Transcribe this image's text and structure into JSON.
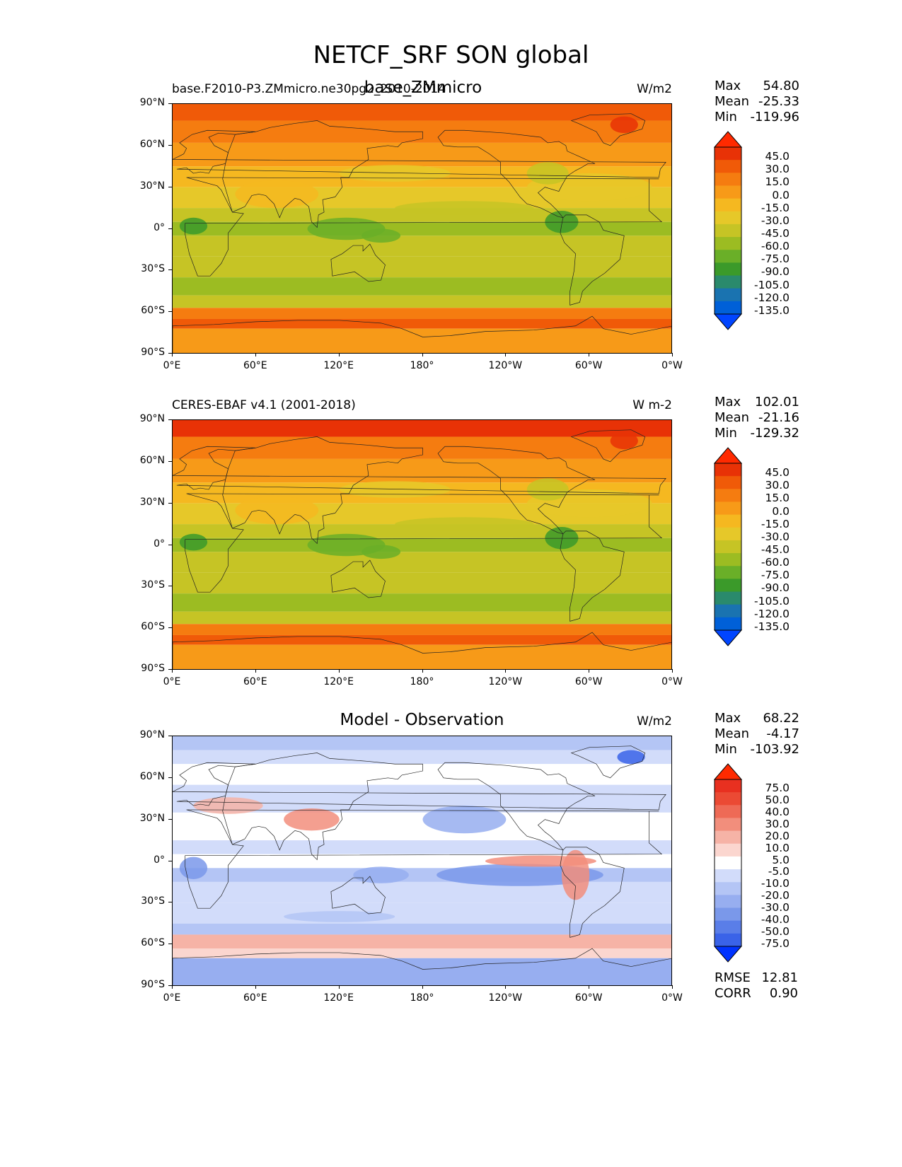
{
  "figure": {
    "title": "NETCF_SRF SON global"
  },
  "panels": [
    {
      "left_label": "base.F2010-P3.ZMmicro.ne30pg2_2010-2014",
      "center_label": "base_ZMmicro",
      "units": "W/m2",
      "stats": {
        "max_label": "Max",
        "max": "54.80",
        "mean_label": "Mean",
        "mean": "-25.33",
        "min_label": "Min",
        "min": "-119.96"
      },
      "colormap": "sequential",
      "colorbar": [
        "45.0",
        "30.0",
        "15.0",
        "0.0",
        "-15.0",
        "-30.0",
        "-45.0",
        "-60.0",
        "-75.0",
        "-90.0",
        "-105.0",
        "-120.0",
        "-135.0"
      ]
    },
    {
      "left_label": "CERES-EBAF v4.1 (2001-2018)",
      "center_label": "",
      "units": "W m-2",
      "stats": {
        "max_label": "Max",
        "max": "102.01",
        "mean_label": "Mean",
        "mean": "-21.16",
        "min_label": "Min",
        "min": "-129.32"
      },
      "colormap": "sequential",
      "colorbar": [
        "45.0",
        "30.0",
        "15.0",
        "0.0",
        "-15.0",
        "-30.0",
        "-45.0",
        "-60.0",
        "-75.0",
        "-90.0",
        "-105.0",
        "-120.0",
        "-135.0"
      ]
    },
    {
      "left_label": "",
      "center_label": "Model - Observation",
      "units": "W/m2",
      "stats": {
        "max_label": "Max",
        "max": "68.22",
        "mean_label": "Mean",
        "mean": "-4.17",
        "min_label": "Min",
        "min": "-103.92"
      },
      "colormap": "diverging",
      "colorbar": [
        "75.0",
        "50.0",
        "40.0",
        "30.0",
        "20.0",
        "10.0",
        "5.0",
        "-5.0",
        "-10.0",
        "-20.0",
        "-30.0",
        "-40.0",
        "-50.0",
        "-75.0"
      ],
      "rmse_label": "RMSE",
      "rmse": "12.81",
      "corr_label": "CORR",
      "corr": "0.90"
    }
  ],
  "axes": {
    "lat_ticks": [
      "90°N",
      "60°N",
      "30°N",
      "0°",
      "30°S",
      "60°S",
      "90°S"
    ],
    "lon_ticks": [
      "0°E",
      "60°E",
      "120°E",
      "180°",
      "120°W",
      "60°W",
      "0°W"
    ]
  },
  "palettes": {
    "sequential": [
      "#0045ff",
      "#0060d8",
      "#1a73b0",
      "#2a8a6c",
      "#3b9a2a",
      "#6aaf28",
      "#9cbc22",
      "#c6c425",
      "#e6c829",
      "#f5b820",
      "#f79a18",
      "#f57c10",
      "#f05a08",
      "#e83206",
      "#ff2a00"
    ],
    "diverging": [
      "#0033ff",
      "#3a63e8",
      "#5a7ee8",
      "#7a98ea",
      "#97aef0",
      "#b4c5f5",
      "#d2dcfa",
      "#ffffff",
      "#fbd6cf",
      "#f6b3a6",
      "#f28e7c",
      "#ee6a56",
      "#eb4a34",
      "#e83020",
      "#ff2a00"
    ]
  }
}
